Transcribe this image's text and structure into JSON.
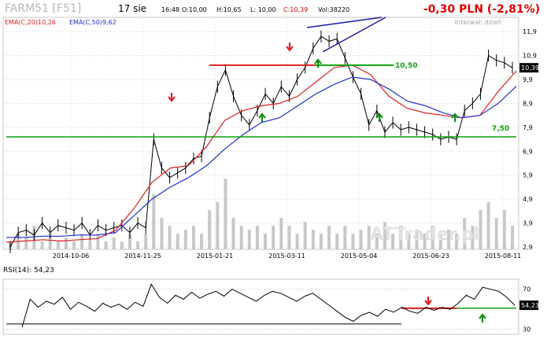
{
  "header": {
    "ticker": "FARM51 [F51]",
    "date": "17 sie",
    "time": "16:48",
    "open": "O:10,00",
    "high": "H:10,65",
    "low": "L: 10,00",
    "close": "C:10,39",
    "volume": "Vol:38220",
    "change": "-0,30 PLN (-2,81%)",
    "interval": "Interwał: dzień",
    "watermark": "ATTrader.pl",
    "colors": {
      "ticker": "#b0b0b0",
      "change": "#e00000",
      "ema20": "#e02020",
      "ema50": "#2030d0",
      "support": "#10a010",
      "resistance": "#e02020"
    }
  },
  "chart_data": [
    {
      "type": "line",
      "title": "FARM51 [F51]",
      "x_tick_labels": [
        "2014-10-06",
        "2014-11-25",
        "2015-01-21",
        "2015-03-11",
        "2015-05-04",
        "2015-06-23",
        "2015-08-11"
      ],
      "y_tick_labels": [
        "2,9",
        "3,9",
        "4,9",
        "5,9",
        "6,9",
        "7,9",
        "8,9",
        "9,9",
        "10,9",
        "11,9"
      ],
      "ylim": [
        2.8,
        12.5
      ],
      "y_label_current": "10,39",
      "series": [
        {
          "name": "EMA(C,20)10,26",
          "values": [
            3.1,
            3.15,
            3.2,
            3.15,
            3.2,
            3.25,
            3.6,
            4.5,
            5.6,
            6.2,
            6.3,
            7.1,
            8.2,
            8.6,
            8.8,
            8.9,
            9.2,
            9.8,
            10.4,
            10.5,
            10.1,
            9.2,
            8.7,
            8.5,
            8.4,
            8.3,
            8.4,
            9.4,
            10.26
          ]
        },
        {
          "name": "EMA(C,50)9,62",
          "values": [
            3.3,
            3.3,
            3.35,
            3.35,
            3.4,
            3.4,
            3.5,
            4.2,
            4.9,
            5.4,
            5.8,
            6.3,
            7.0,
            7.6,
            8.1,
            8.3,
            8.8,
            9.3,
            9.7,
            10.0,
            9.9,
            9.5,
            9.0,
            8.8,
            8.5,
            8.3,
            8.4,
            8.9,
            9.62
          ]
        }
      ],
      "close_values": [
        2.9,
        3.5,
        3.6,
        3.4,
        3.9,
        3.5,
        3.8,
        3.7,
        3.6,
        3.9,
        3.4,
        3.8,
        3.6,
        3.7,
        3.8,
        3.5,
        3.9,
        3.7,
        7.4,
        6.2,
        5.8,
        6.0,
        6.2,
        6.6,
        6.7,
        8.3,
        9.6,
        10.3,
        9.2,
        8.4,
        8.0,
        8.6,
        9.3,
        8.9,
        9.6,
        9.2,
        9.9,
        10.4,
        11.2,
        11.7,
        11.5,
        11.6,
        10.8,
        10.0,
        9.3,
        8.0,
        8.6,
        7.7,
        8.1,
        7.8,
        7.9,
        7.8,
        7.7,
        7.6,
        7.4,
        7.5,
        7.4,
        8.6,
        8.9,
        9.3,
        10.9,
        10.7,
        10.6,
        10.39
      ],
      "volume_relative": [
        0.1,
        0.2,
        0.15,
        0.3,
        0.1,
        0.2,
        0.1,
        0.15,
        0.1,
        0.2,
        0.1,
        0.2,
        0.1,
        0.15,
        0.1,
        0.2,
        0.1,
        0.2,
        0.7,
        0.4,
        0.3,
        0.2,
        0.25,
        0.3,
        0.2,
        0.5,
        0.6,
        0.9,
        0.4,
        0.3,
        0.25,
        0.3,
        0.2,
        0.3,
        0.4,
        0.3,
        0.2,
        0.35,
        0.25,
        0.2,
        0.3,
        0.2,
        0.3,
        0.2,
        0.25,
        0.3,
        0.2,
        0.35,
        0.2,
        0.3,
        0.2,
        0.25,
        0.2,
        0.3,
        0.2,
        0.25,
        0.2,
        0.4,
        0.3,
        0.5,
        0.6,
        0.4,
        0.5,
        0.3
      ],
      "annotations": {
        "resistance_label": "10,50",
        "resistance_level": 10.5,
        "support_label": "7,50",
        "support_level": 7.5
      },
      "grid": true
    },
    {
      "type": "line",
      "title": "RSI(14): 54,23",
      "y_tick_labels": [
        "70",
        "30"
      ],
      "ylim": [
        25,
        80
      ],
      "current_label": "54,23",
      "series": [
        {
          "name": "RSI(14): 54,23",
          "values": [
            32,
            60,
            52,
            58,
            55,
            62,
            50,
            57,
            53,
            48,
            56,
            52,
            55,
            50,
            57,
            53,
            75,
            62,
            56,
            64,
            60,
            67,
            61,
            65,
            68,
            63,
            70,
            66,
            62,
            58,
            64,
            68,
            66,
            62,
            58,
            63,
            66,
            60,
            54,
            48,
            42,
            38,
            44,
            47,
            43,
            50,
            47,
            52,
            48,
            46,
            52,
            49,
            52,
            50,
            56,
            64,
            60,
            72,
            70,
            68,
            62,
            54
          ]
        }
      ],
      "annotations": {
        "level_line": 51
      },
      "grid": true
    }
  ]
}
